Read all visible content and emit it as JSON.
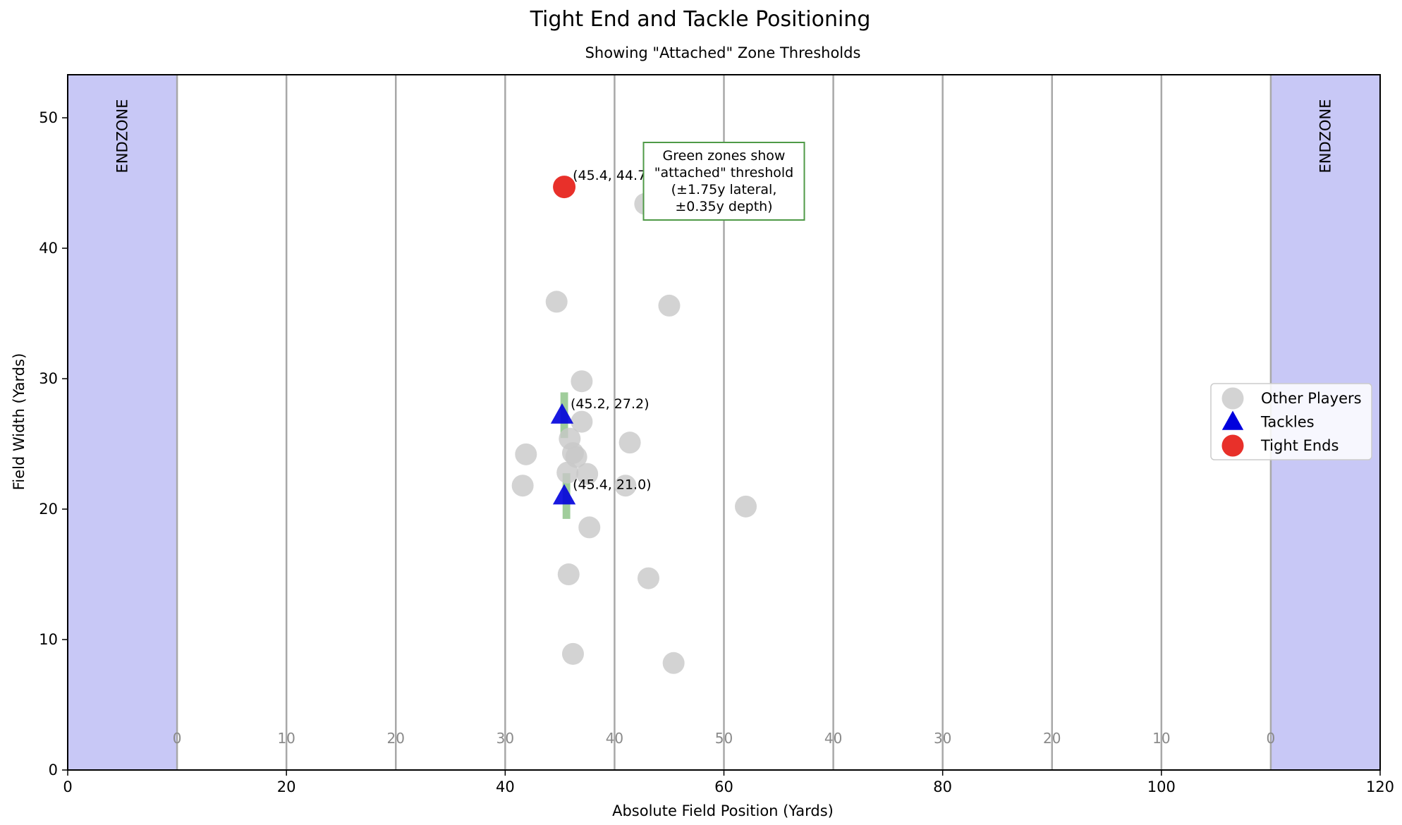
{
  "chart_data": {
    "type": "scatter",
    "title": "Tight End and Tackle Positioning",
    "subtitle": "Showing \"Attached\" Zone Thresholds",
    "xlabel": "Absolute Field Position (Yards)",
    "ylabel": "Field Width (Yards)",
    "xlim": [
      0,
      120
    ],
    "ylim": [
      0,
      53.3
    ],
    "x_ticks": [
      0,
      20,
      40,
      60,
      80,
      100,
      120
    ],
    "y_ticks": [
      0,
      10,
      20,
      30,
      40,
      50
    ],
    "grid": false,
    "endzones": [
      {
        "label": "ENDZONE",
        "x_start": 0,
        "x_end": 10
      },
      {
        "label": "ENDZONE",
        "x_start": 110,
        "x_end": 120
      }
    ],
    "yard_lines": [
      {
        "x": 10,
        "label": "0"
      },
      {
        "x": 20,
        "label": "10"
      },
      {
        "x": 30,
        "label": "20"
      },
      {
        "x": 40,
        "label": "30"
      },
      {
        "x": 50,
        "label": "40"
      },
      {
        "x": 60,
        "label": "50"
      },
      {
        "x": 70,
        "label": "40"
      },
      {
        "x": 80,
        "label": "30"
      },
      {
        "x": 90,
        "label": "20"
      },
      {
        "x": 100,
        "label": "10"
      },
      {
        "x": 110,
        "label": "0"
      }
    ],
    "attached_zones": [
      {
        "x_min": 45.05,
        "x_max": 45.75,
        "y_min": 25.45,
        "y_max": 28.95
      },
      {
        "x_min": 45.25,
        "x_max": 45.95,
        "y_min": 19.25,
        "y_max": 22.75
      }
    ],
    "series": [
      {
        "name": "Other Players",
        "color": "#c8c8c8",
        "marker": "circle",
        "points": [
          [
            52.8,
            43.4
          ],
          [
            44.7,
            35.9
          ],
          [
            55.0,
            35.6
          ],
          [
            47.0,
            29.8
          ],
          [
            47.0,
            26.7
          ],
          [
            45.9,
            25.4
          ],
          [
            51.4,
            25.1
          ],
          [
            41.9,
            24.2
          ],
          [
            46.2,
            24.3
          ],
          [
            46.5,
            24.0
          ],
          [
            45.7,
            22.8
          ],
          [
            47.5,
            22.7
          ],
          [
            41.6,
            21.8
          ],
          [
            51.0,
            21.8
          ],
          [
            62.0,
            20.2
          ],
          [
            47.7,
            18.6
          ],
          [
            45.8,
            15.0
          ],
          [
            53.1,
            14.7
          ],
          [
            46.2,
            8.9
          ],
          [
            55.4,
            8.2
          ]
        ]
      },
      {
        "name": "Tackles",
        "color": "#0000dd",
        "marker": "triangle",
        "points": [
          [
            45.2,
            27.2
          ],
          [
            45.4,
            21.0
          ]
        ]
      },
      {
        "name": "Tight Ends",
        "color": "#e8302a",
        "marker": "circle",
        "points": [
          [
            45.4,
            44.7
          ]
        ]
      }
    ],
    "point_labels": [
      {
        "text": "(45.4, 44.7)",
        "x": 45.4,
        "y": 44.7
      },
      {
        "text": "(45.2, 27.2)",
        "x": 45.2,
        "y": 27.2
      },
      {
        "text": "(45.4, 21.0)",
        "x": 45.4,
        "y": 21.0
      }
    ],
    "annotation": {
      "lines": [
        "Green zones show",
        "\"attached\" threshold",
        "(±1.75y lateral,",
        "±0.35y depth)"
      ],
      "x": 60,
      "y": 44.7
    },
    "legend": {
      "placement": "center-right",
      "entries": [
        "Other Players",
        "Tackles",
        "Tight Ends"
      ]
    },
    "colors": {
      "endzone": "#c8c8f6",
      "yard_line": "#a8a8a8",
      "attached_zone": "#8fc48a",
      "annotation_border": "#4f9a47"
    }
  }
}
